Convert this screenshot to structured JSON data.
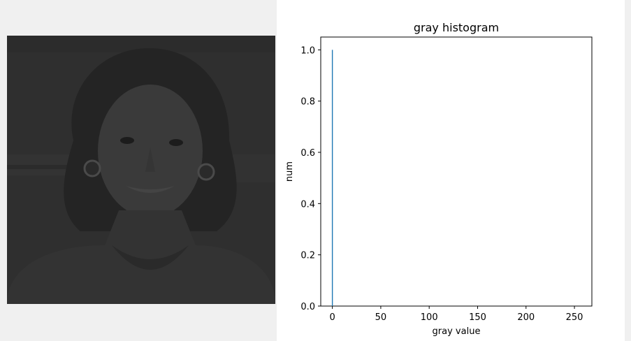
{
  "left_panel": {
    "image": "grayscale portrait photo of a smiling woman with curly hair and earrings, very dark (low brightness)"
  },
  "colors": {
    "bar": "#1f77b4",
    "photo_base": "#2d2d2d"
  },
  "chart_data": {
    "type": "bar",
    "title": "gray histogram",
    "xlabel": "gray value",
    "ylabel": "num",
    "xlim": [
      -12,
      268
    ],
    "ylim": [
      0,
      1.05
    ],
    "xticks": [
      0,
      50,
      100,
      150,
      200,
      250
    ],
    "yticks": [
      0.0,
      0.2,
      0.4,
      0.6,
      0.8,
      1.0
    ],
    "xtick_labels": [
      "0",
      "50",
      "100",
      "150",
      "200",
      "250"
    ],
    "ytick_labels": [
      "0.0",
      "0.2",
      "0.4",
      "0.6",
      "0.8",
      "1.0"
    ],
    "bars": [
      {
        "x": 0,
        "value": 1.0
      }
    ],
    "grid": false,
    "legend": false
  }
}
